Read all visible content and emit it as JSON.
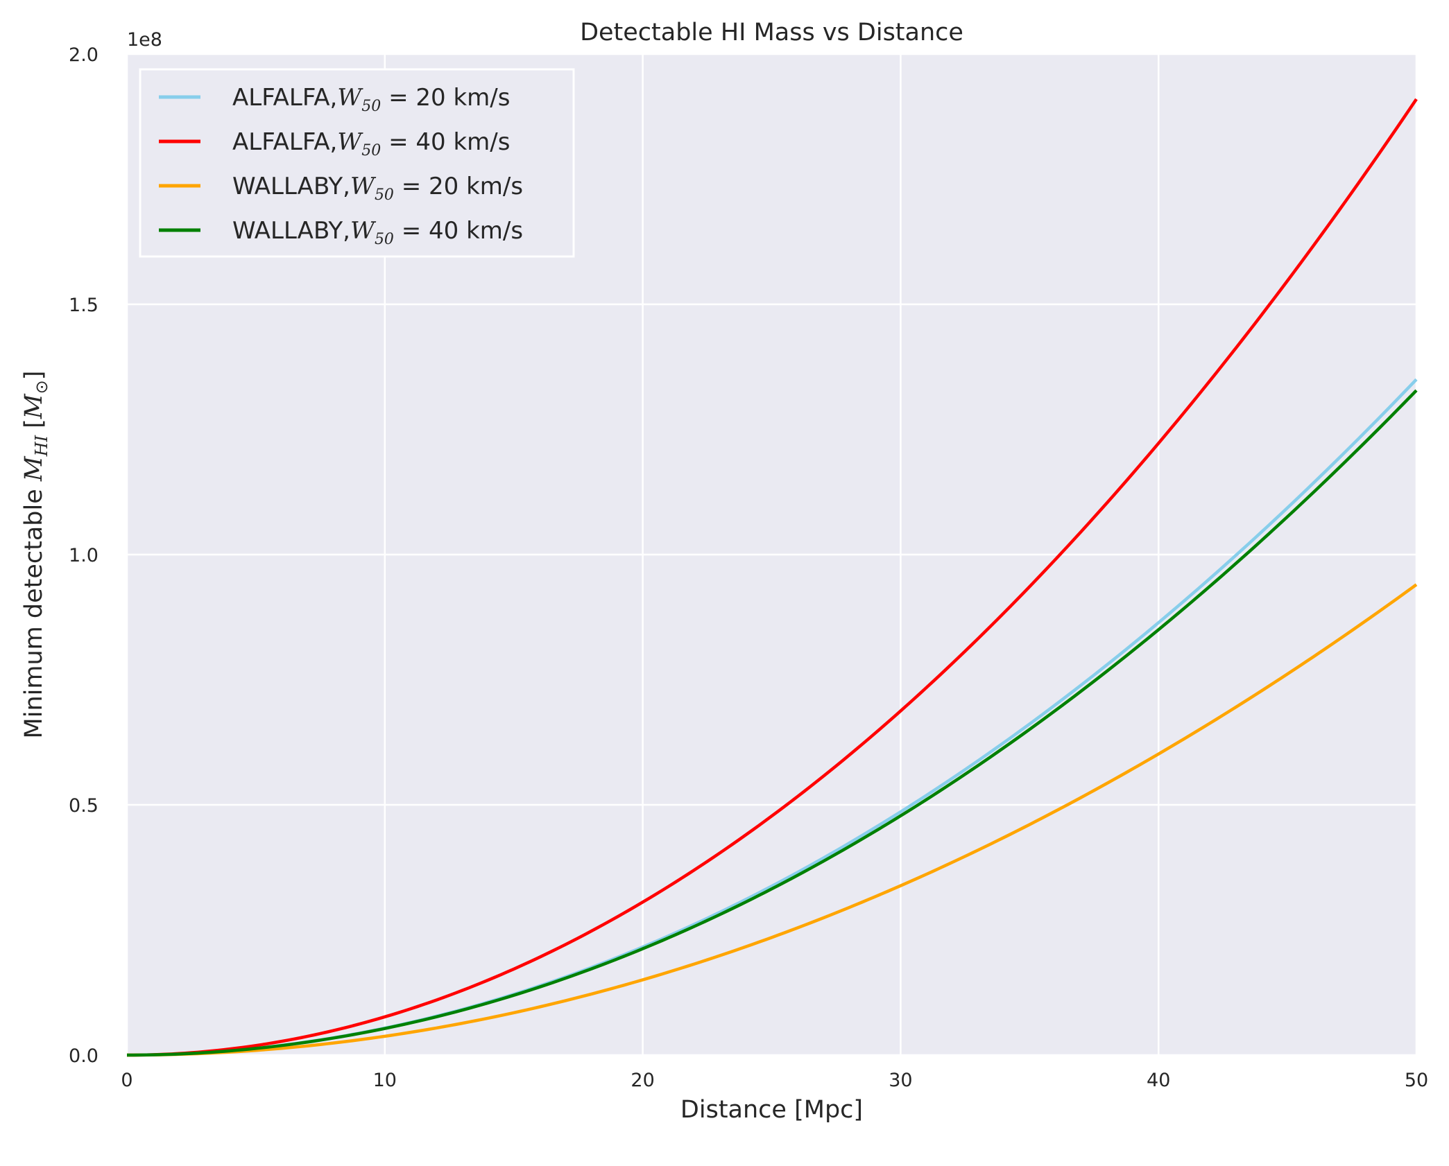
{
  "chart_data": {
    "type": "line",
    "title": "Detectable HI Mass vs Distance",
    "xlabel": "Distance [Mpc]",
    "ylabel_text": "Minimum detectable ",
    "ylabel_math": {
      "symbol": "M",
      "sub": "HI",
      "unit_open": "[",
      "unit_symbol": "M",
      "unit_sub": "⊙",
      "unit_close": "]"
    },
    "y_offset_text": "1e8",
    "xlim": [
      0,
      50
    ],
    "ylim": [
      0,
      200000000
    ],
    "x_ticks": [
      0,
      10,
      20,
      30,
      40,
      50
    ],
    "x_tick_labels": [
      "0",
      "10",
      "20",
      "30",
      "40",
      "50"
    ],
    "y_ticks": [
      0,
      50000000,
      100000000,
      150000000,
      200000000
    ],
    "y_tick_labels": [
      "0.0",
      "0.5",
      "1.0",
      "1.5",
      "2.0"
    ],
    "grid": true,
    "legend_position": "top-left",
    "background": "#EAEAF2",
    "x": [
      0,
      5,
      10,
      15,
      20,
      25,
      30,
      35,
      40,
      45,
      50
    ],
    "series": [
      {
        "legend_prefix": "ALFALFA,",
        "legend_suffix": " = 20 km/s",
        "color": "#87CEEB",
        "values": [
          0,
          1350000,
          5400000,
          12150000,
          21600000,
          33750000,
          48600000,
          66150000,
          86400000,
          109350000,
          135000000
        ]
      },
      {
        "legend_prefix": "ALFALFA,",
        "legend_suffix": " = 40 km/s",
        "color": "#FF0000",
        "values": [
          0,
          1910000,
          7640000,
          17190000,
          30560000,
          47750000,
          68760000,
          93590000,
          122240000,
          154710000,
          191000000
        ]
      },
      {
        "legend_prefix": "WALLABY,",
        "legend_suffix": " = 20 km/s",
        "color": "#FFA500",
        "values": [
          0,
          940000,
          3760000,
          8460000,
          15040000,
          23500000,
          33840000,
          46060000,
          60160000,
          76140000,
          94000000
        ]
      },
      {
        "legend_prefix": "WALLABY,",
        "legend_suffix": " = 40 km/s",
        "color": "#008000",
        "values": [
          0,
          1328000,
          5312000,
          11952000,
          21248000,
          33200000,
          47808000,
          65072000,
          84992000,
          107568000,
          132800000
        ]
      }
    ],
    "legend_math": {
      "symbol": "W",
      "sub": "50"
    }
  }
}
